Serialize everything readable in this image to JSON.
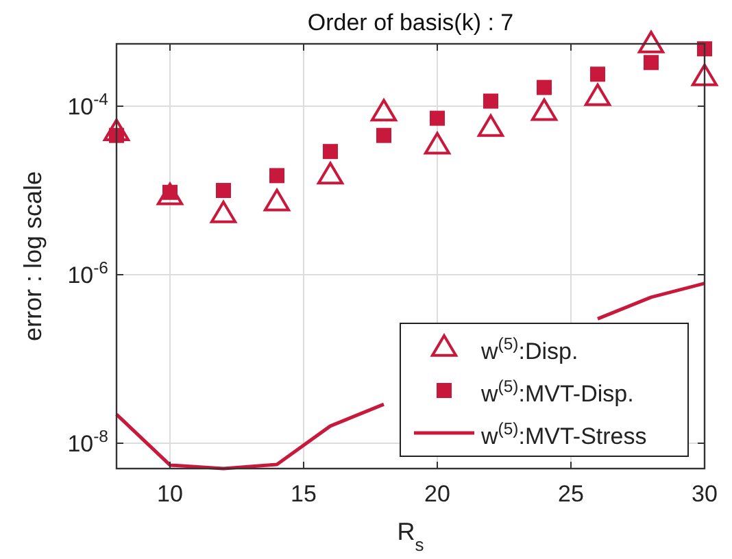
{
  "chart_data": {
    "type": "scatter",
    "title": "Order of basis(k) : 7",
    "xlabel": "R$_{s}$",
    "ylabel": "error : log scale",
    "x": [
      8,
      10,
      12,
      14,
      16,
      18,
      20,
      22,
      24,
      26,
      28,
      30
    ],
    "xlim": [
      8,
      30
    ],
    "xticks": [
      10,
      15,
      20,
      25,
      30
    ],
    "ylim": [
      5e-09,
      0.00055
    ],
    "yticks": [
      {
        "value": 1e-08,
        "label": "10$^{-8}$"
      },
      {
        "value": 1e-06,
        "label": "10$^{-6}$"
      },
      {
        "value": 0.0001,
        "label": "10$^{-4}$"
      }
    ],
    "log": "y",
    "grid": true,
    "legend": "bottom right",
    "series": [
      {
        "name": "w$^{(5)}$:Disp.",
        "color": "#c8193c",
        "marker": "triangle",
        "values": [
          4.9e-05,
          8.5e-06,
          5.2e-06,
          7.2e-06,
          1.5e-05,
          8.4e-05,
          3.4e-05,
          5.5e-05,
          8.5e-05,
          0.000128,
          0.00054,
          0.00022
        ]
      },
      {
        "name": "w$^{(5)}$:MVT-Disp.",
        "color": "#c8193c",
        "marker": "square",
        "values": [
          4.5e-05,
          9.5e-06,
          1e-05,
          1.5e-05,
          2.9e-05,
          4.5e-05,
          7.2e-05,
          0.000115,
          0.000167,
          0.00024,
          0.00033,
          0.00048
        ]
      },
      {
        "name": "w$^{(5)}$:MVT-Stress",
        "type": "line",
        "color": "#c8193c",
        "marker": "none",
        "line_style": "solid",
        "values": [
          2.2e-08,
          5.5e-09,
          5e-09,
          5.6e-09,
          1.6e-08,
          2.9e-08,
          null,
          null,
          null,
          3e-07,
          5.4e-07,
          7.9e-07
        ]
      }
    ]
  }
}
